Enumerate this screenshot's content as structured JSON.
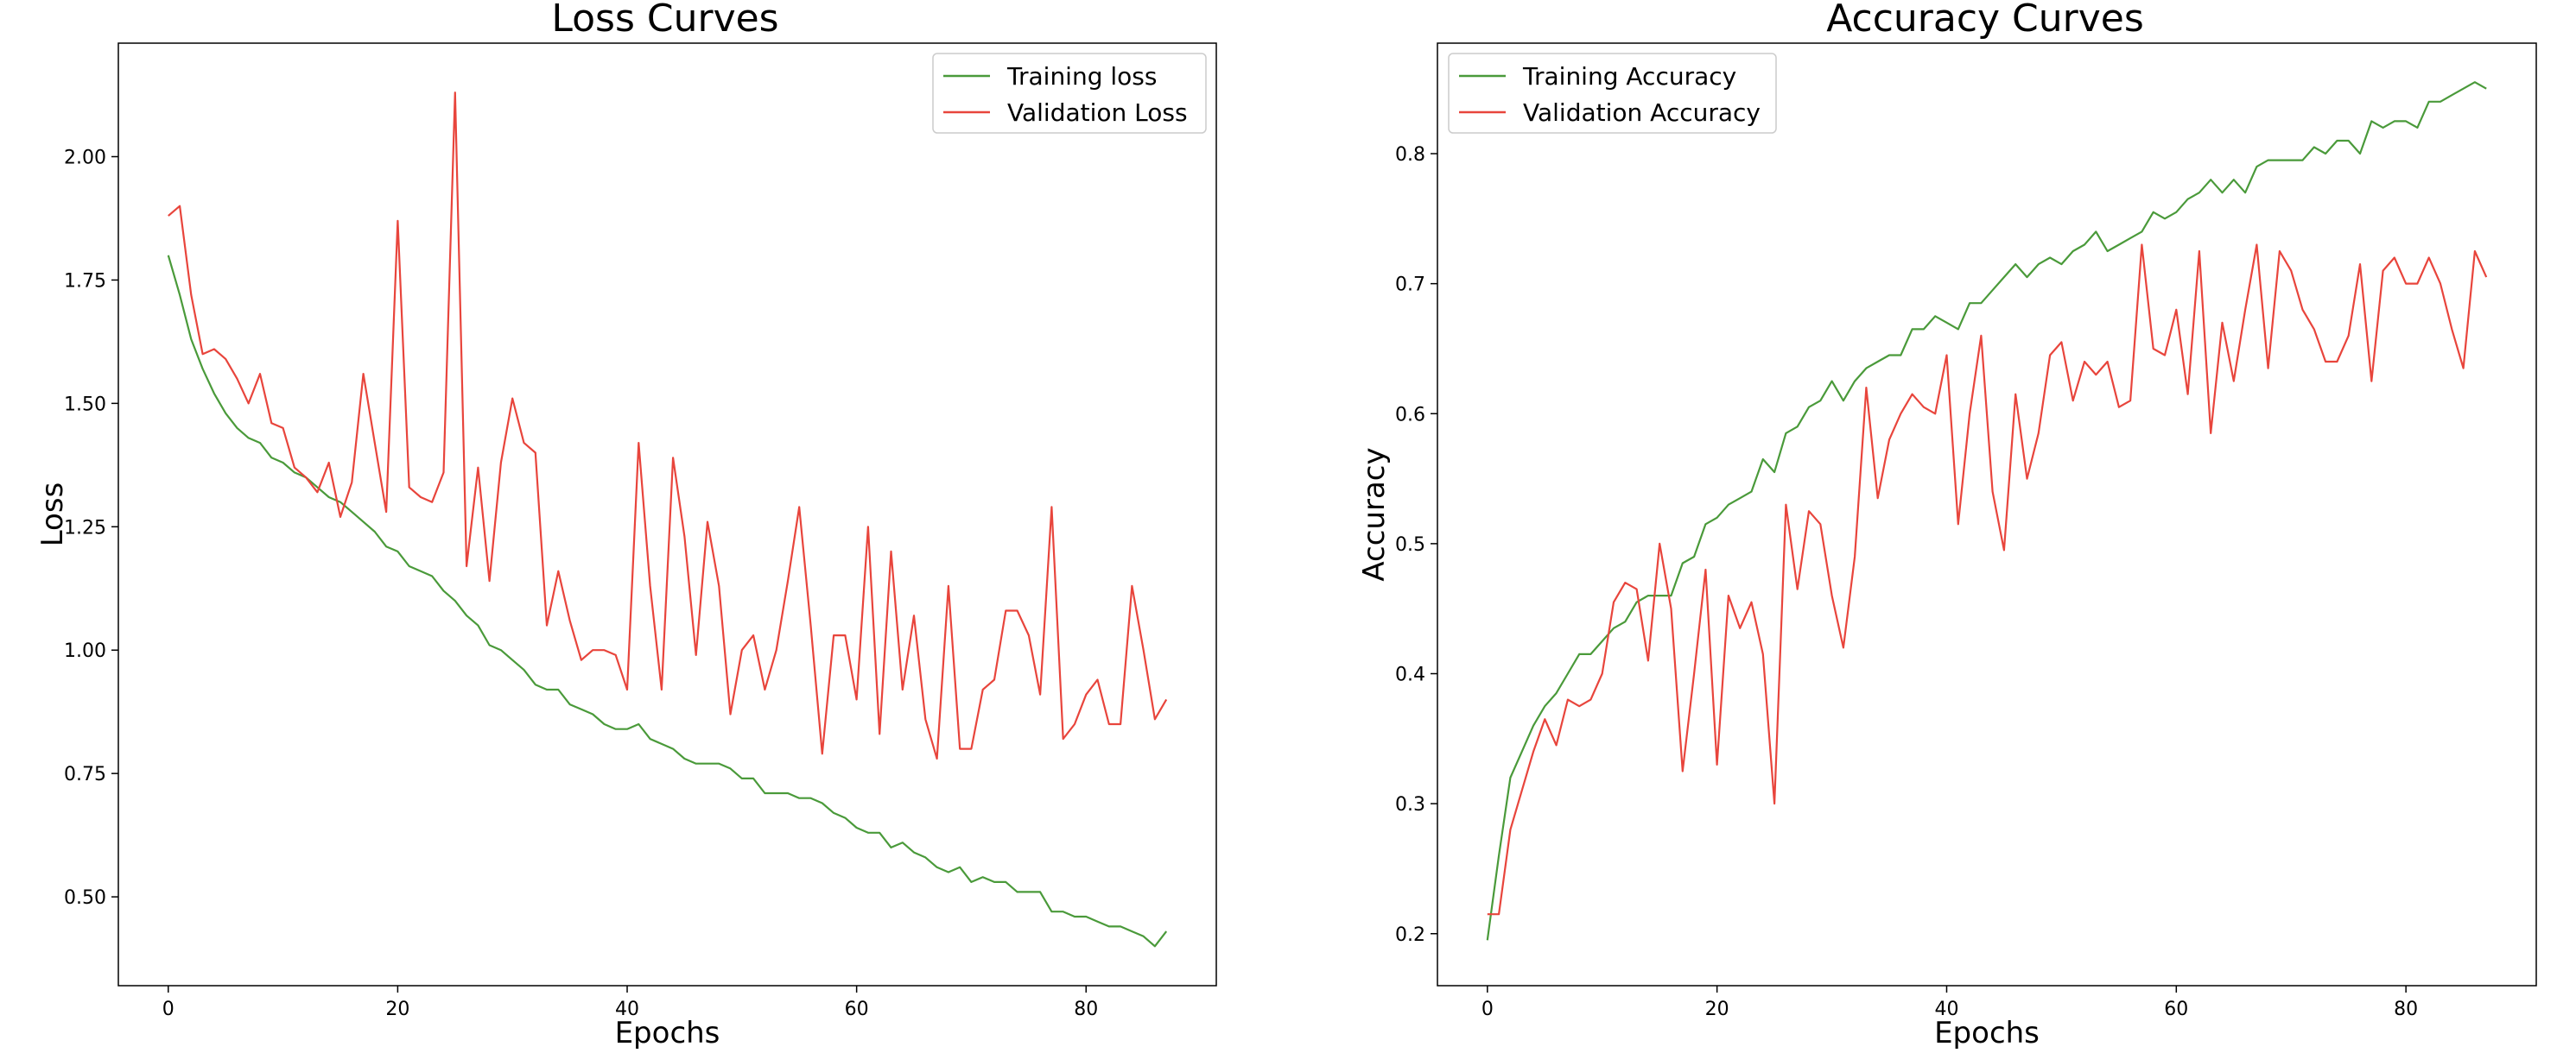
{
  "chart_data": [
    {
      "type": "line",
      "title": "Loss Curves",
      "xlabel": "Epochs",
      "ylabel": "Loss",
      "xlim": [
        -4.35,
        91.35
      ],
      "ylim": [
        0.32,
        2.23
      ],
      "xticks": [
        0,
        20,
        40,
        60,
        80
      ],
      "yticks": [
        0.5,
        0.75,
        1.0,
        1.25,
        1.5,
        1.75,
        2.0
      ],
      "ytick_labels": [
        "0.50",
        "0.75",
        "1.00",
        "1.25",
        "1.50",
        "1.75",
        "2.00"
      ],
      "grid": false,
      "legend_position": "top-right",
      "x": [
        0,
        1,
        2,
        3,
        4,
        5,
        6,
        7,
        8,
        9,
        10,
        11,
        12,
        13,
        14,
        15,
        16,
        17,
        18,
        19,
        20,
        21,
        22,
        23,
        24,
        25,
        26,
        27,
        28,
        29,
        30,
        31,
        32,
        33,
        34,
        35,
        36,
        37,
        38,
        39,
        40,
        41,
        42,
        43,
        44,
        45,
        46,
        47,
        48,
        49,
        50,
        51,
        52,
        53,
        54,
        55,
        56,
        57,
        58,
        59,
        60,
        61,
        62,
        63,
        64,
        65,
        66,
        67,
        68,
        69,
        70,
        71,
        72,
        73,
        74,
        75,
        76,
        77,
        78,
        79,
        80,
        81,
        82,
        83,
        84,
        85,
        86,
        87
      ],
      "series": [
        {
          "name": "Training loss",
          "color": "#4a9a3a",
          "values": [
            1.8,
            1.72,
            1.63,
            1.57,
            1.52,
            1.48,
            1.45,
            1.43,
            1.42,
            1.39,
            1.38,
            1.36,
            1.35,
            1.33,
            1.31,
            1.3,
            1.28,
            1.26,
            1.24,
            1.21,
            1.2,
            1.17,
            1.16,
            1.15,
            1.12,
            1.1,
            1.07,
            1.05,
            1.01,
            1.0,
            0.98,
            0.96,
            0.93,
            0.92,
            0.92,
            0.89,
            0.88,
            0.87,
            0.85,
            0.84,
            0.84,
            0.85,
            0.82,
            0.81,
            0.8,
            0.78,
            0.77,
            0.77,
            0.77,
            0.76,
            0.74,
            0.74,
            0.71,
            0.71,
            0.71,
            0.7,
            0.7,
            0.69,
            0.67,
            0.66,
            0.64,
            0.63,
            0.63,
            0.6,
            0.61,
            0.59,
            0.58,
            0.56,
            0.55,
            0.56,
            0.53,
            0.54,
            0.53,
            0.53,
            0.51,
            0.51,
            0.51,
            0.47,
            0.47,
            0.46,
            0.46,
            0.45,
            0.44,
            0.44,
            0.43,
            0.42,
            0.4,
            0.43
          ]
        },
        {
          "name": "Validation Loss",
          "color": "#e8453c",
          "values": [
            1.88,
            1.9,
            1.72,
            1.6,
            1.61,
            1.59,
            1.55,
            1.5,
            1.56,
            1.46,
            1.45,
            1.37,
            1.35,
            1.32,
            1.38,
            1.27,
            1.34,
            1.56,
            1.42,
            1.28,
            1.87,
            1.33,
            1.31,
            1.3,
            1.36,
            2.13,
            1.17,
            1.37,
            1.14,
            1.38,
            1.51,
            1.42,
            1.4,
            1.05,
            1.16,
            1.06,
            0.98,
            1.0,
            1.0,
            0.99,
            0.92,
            1.42,
            1.13,
            0.92,
            1.39,
            1.23,
            0.99,
            1.26,
            1.13,
            0.87,
            1.0,
            1.03,
            0.92,
            1.0,
            1.14,
            1.29,
            1.05,
            0.79,
            1.03,
            1.03,
            0.9,
            1.25,
            0.83,
            1.2,
            0.92,
            1.07,
            0.86,
            0.78,
            1.13,
            0.8,
            0.8,
            0.92,
            0.94,
            1.08,
            1.08,
            1.03,
            0.91,
            1.29,
            0.82,
            0.85,
            0.91,
            0.94,
            0.85,
            0.85,
            1.13,
            1.0,
            0.86,
            0.9
          ]
        }
      ]
    },
    {
      "type": "line",
      "title": "Accuracy Curves",
      "xlabel": "Epochs",
      "ylabel": "Accuracy",
      "xlim": [
        -4.35,
        91.35
      ],
      "ylim": [
        0.16,
        0.885
      ],
      "xticks": [
        0,
        20,
        40,
        60,
        80
      ],
      "yticks": [
        0.2,
        0.3,
        0.4,
        0.5,
        0.6,
        0.7,
        0.8
      ],
      "ytick_labels": [
        "0.2",
        "0.3",
        "0.4",
        "0.5",
        "0.6",
        "0.7",
        "0.8"
      ],
      "grid": false,
      "legend_position": "top-left",
      "x": [
        0,
        1,
        2,
        3,
        4,
        5,
        6,
        7,
        8,
        9,
        10,
        11,
        12,
        13,
        14,
        15,
        16,
        17,
        18,
        19,
        20,
        21,
        22,
        23,
        24,
        25,
        26,
        27,
        28,
        29,
        30,
        31,
        32,
        33,
        34,
        35,
        36,
        37,
        38,
        39,
        40,
        41,
        42,
        43,
        44,
        45,
        46,
        47,
        48,
        49,
        50,
        51,
        52,
        53,
        54,
        55,
        56,
        57,
        58,
        59,
        60,
        61,
        62,
        63,
        64,
        65,
        66,
        67,
        68,
        69,
        70,
        71,
        72,
        73,
        74,
        75,
        76,
        77,
        78,
        79,
        80,
        81,
        82,
        83,
        84,
        85,
        86,
        87
      ],
      "series": [
        {
          "name": "Training Accuracy",
          "color": "#4a9a3a",
          "values": [
            0.195,
            0.26,
            0.32,
            0.34,
            0.36,
            0.375,
            0.385,
            0.4,
            0.415,
            0.415,
            0.425,
            0.435,
            0.44,
            0.455,
            0.46,
            0.46,
            0.46,
            0.485,
            0.49,
            0.515,
            0.52,
            0.53,
            0.535,
            0.54,
            0.565,
            0.555,
            0.585,
            0.59,
            0.605,
            0.61,
            0.625,
            0.61,
            0.625,
            0.635,
            0.64,
            0.645,
            0.645,
            0.665,
            0.665,
            0.675,
            0.67,
            0.665,
            0.685,
            0.685,
            0.695,
            0.705,
            0.715,
            0.705,
            0.715,
            0.72,
            0.715,
            0.725,
            0.73,
            0.74,
            0.725,
            0.73,
            0.735,
            0.74,
            0.755,
            0.75,
            0.755,
            0.765,
            0.77,
            0.78,
            0.77,
            0.78,
            0.77,
            0.79,
            0.795,
            0.795,
            0.795,
            0.795,
            0.805,
            0.8,
            0.81,
            0.81,
            0.8,
            0.825,
            0.82,
            0.825,
            0.825,
            0.82,
            0.84,
            0.84,
            0.845,
            0.85,
            0.855,
            0.85
          ]
        },
        {
          "name": "Validation Accuracy",
          "color": "#e8453c",
          "values": [
            0.215,
            0.215,
            0.28,
            0.31,
            0.34,
            0.365,
            0.345,
            0.38,
            0.375,
            0.38,
            0.4,
            0.455,
            0.47,
            0.465,
            0.41,
            0.5,
            0.45,
            0.325,
            0.4,
            0.48,
            0.33,
            0.46,
            0.435,
            0.455,
            0.415,
            0.3,
            0.53,
            0.465,
            0.525,
            0.515,
            0.46,
            0.42,
            0.49,
            0.62,
            0.535,
            0.58,
            0.6,
            0.615,
            0.605,
            0.6,
            0.645,
            0.515,
            0.6,
            0.66,
            0.54,
            0.495,
            0.615,
            0.55,
            0.585,
            0.645,
            0.655,
            0.61,
            0.64,
            0.63,
            0.64,
            0.605,
            0.61,
            0.73,
            0.65,
            0.645,
            0.68,
            0.615,
            0.725,
            0.585,
            0.67,
            0.625,
            0.68,
            0.73,
            0.635,
            0.725,
            0.71,
            0.68,
            0.665,
            0.64,
            0.64,
            0.66,
            0.715,
            0.625,
            0.71,
            0.72,
            0.7,
            0.7,
            0.72,
            0.7,
            0.665,
            0.635,
            0.725,
            0.705
          ]
        }
      ]
    }
  ]
}
